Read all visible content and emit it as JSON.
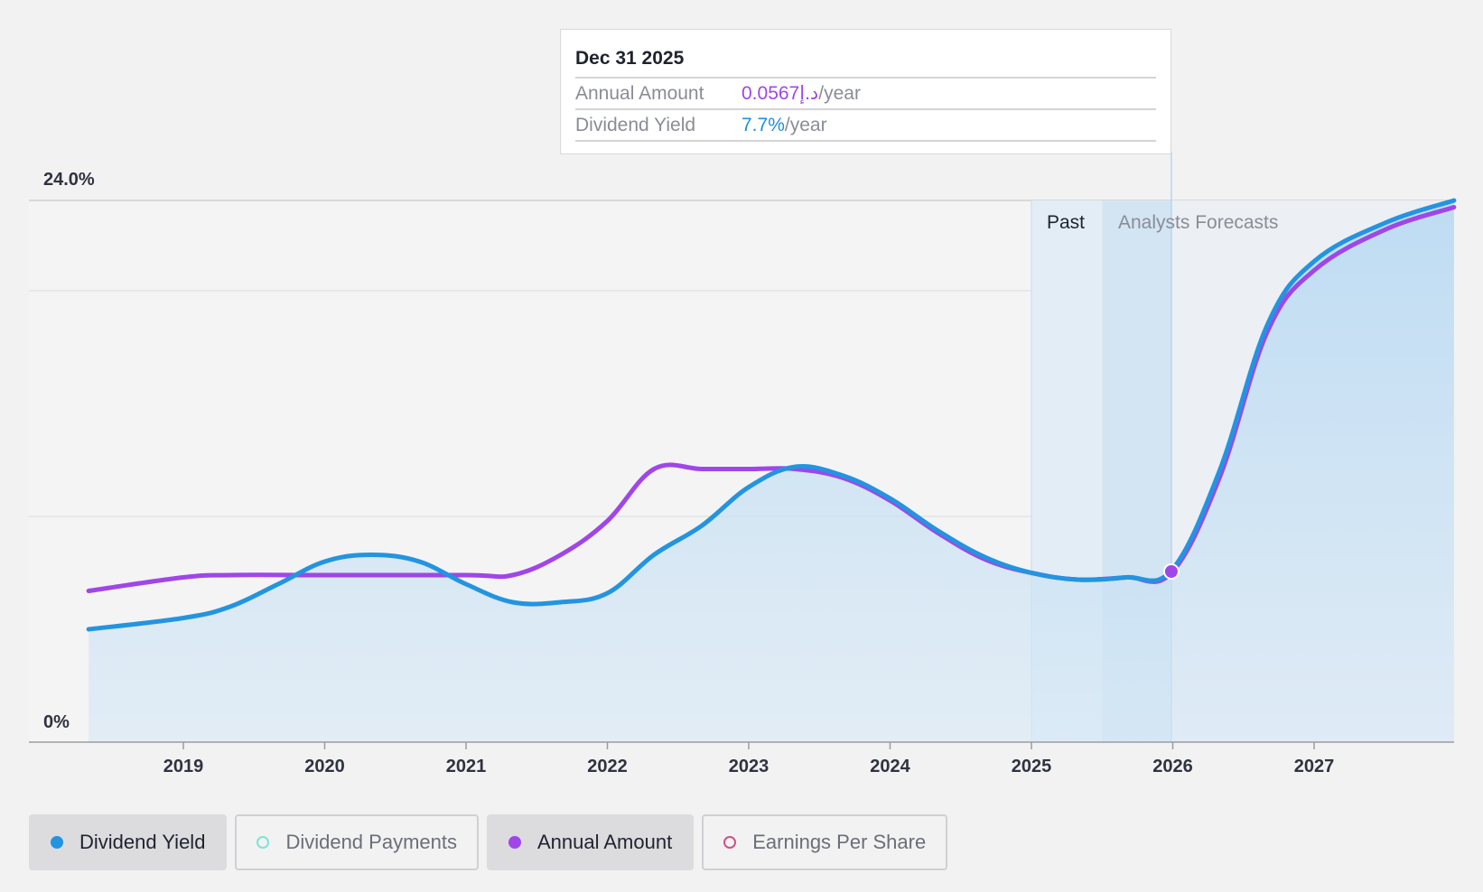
{
  "tooltip": {
    "date": "Dec 31 2025",
    "rows": [
      {
        "key": "Annual Amount",
        "value": "0.0567د.إ",
        "unit": "/year",
        "color": "#a046e8"
      },
      {
        "key": "Dividend Yield",
        "value": "7.7%",
        "unit": "/year",
        "color": "#1e8fd8"
      }
    ]
  },
  "regions": {
    "past_label": "Past",
    "forecast_label": "Analysts Forecasts"
  },
  "legend": [
    {
      "label": "Dividend Yield",
      "active": true,
      "color": "#2394e0",
      "hollow": false
    },
    {
      "label": "Dividend Payments",
      "active": false,
      "color": "#7fe3d8",
      "hollow": true
    },
    {
      "label": "Annual Amount",
      "active": true,
      "color": "#a046e8",
      "hollow": false
    },
    {
      "label": "Earnings Per Share",
      "active": false,
      "color": "#d0508c",
      "hollow": true
    }
  ],
  "chart_data": {
    "type": "line",
    "x_ticks": [
      "2019",
      "2020",
      "2021",
      "2022",
      "2023",
      "2024",
      "2025",
      "2026",
      "2027"
    ],
    "y_tick_labels": [
      "24.0%",
      "0%"
    ],
    "ylim": [
      0,
      24
    ],
    "grid": true,
    "past_until": 2025.99,
    "series": [
      {
        "name": "Dividend Yield",
        "color": "#2394e0",
        "area": true,
        "points": [
          [
            2018.33,
            5.0
          ],
          [
            2019.0,
            5.5
          ],
          [
            2019.33,
            6.0
          ],
          [
            2019.67,
            7.0
          ],
          [
            2020.0,
            8.0
          ],
          [
            2020.33,
            8.3
          ],
          [
            2020.67,
            8.0
          ],
          [
            2021.0,
            7.0
          ],
          [
            2021.33,
            6.2
          ],
          [
            2021.67,
            6.2
          ],
          [
            2022.0,
            6.6
          ],
          [
            2022.33,
            8.3
          ],
          [
            2022.67,
            9.6
          ],
          [
            2023.0,
            11.3
          ],
          [
            2023.33,
            12.2
          ],
          [
            2023.67,
            11.8
          ],
          [
            2024.0,
            10.8
          ],
          [
            2024.33,
            9.4
          ],
          [
            2024.67,
            8.2
          ],
          [
            2025.0,
            7.5
          ],
          [
            2025.33,
            7.2
          ],
          [
            2025.67,
            7.3
          ],
          [
            2025.99,
            7.6
          ],
          [
            2026.33,
            12.0
          ],
          [
            2026.67,
            18.5
          ],
          [
            2027.0,
            21.3
          ],
          [
            2027.5,
            23.0
          ],
          [
            2027.99,
            24.0
          ]
        ]
      },
      {
        "name": "Annual Amount",
        "color": "#a046e8",
        "area": false,
        "points": [
          [
            2018.33,
            6.7
          ],
          [
            2019.0,
            7.3
          ],
          [
            2019.33,
            7.4
          ],
          [
            2020.0,
            7.4
          ],
          [
            2021.0,
            7.4
          ],
          [
            2021.33,
            7.4
          ],
          [
            2021.67,
            8.3
          ],
          [
            2022.0,
            9.8
          ],
          [
            2022.33,
            12.1
          ],
          [
            2022.67,
            12.1
          ],
          [
            2023.0,
            12.1
          ],
          [
            2023.33,
            12.1
          ],
          [
            2023.67,
            11.7
          ],
          [
            2024.0,
            10.7
          ],
          [
            2024.33,
            9.3
          ],
          [
            2024.67,
            8.1
          ],
          [
            2025.0,
            7.5
          ],
          [
            2025.33,
            7.2
          ],
          [
            2025.67,
            7.3
          ],
          [
            2025.99,
            7.5
          ],
          [
            2026.33,
            11.7
          ],
          [
            2026.67,
            18.2
          ],
          [
            2027.0,
            20.9
          ],
          [
            2027.5,
            22.7
          ],
          [
            2027.99,
            23.7
          ]
        ]
      }
    ],
    "highlight": {
      "x": 2025.99,
      "y": 7.6
    }
  }
}
